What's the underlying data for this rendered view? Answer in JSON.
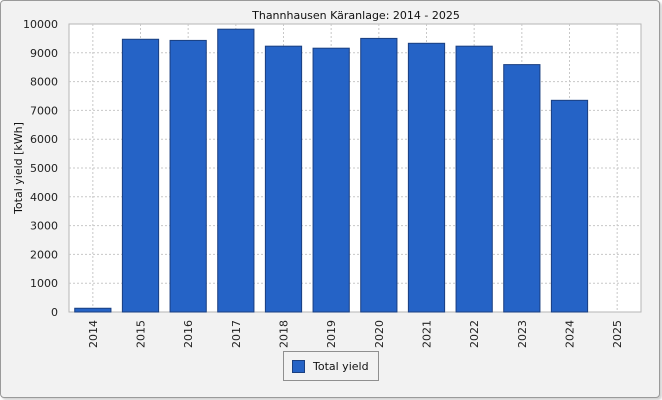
{
  "chart_data": {
    "type": "bar",
    "title": "Thannhausen Käranlage: 2014 - 2025",
    "xlabel": "",
    "ylabel": "Total yield [kWh]",
    "categories": [
      "2014",
      "2015",
      "2016",
      "2017",
      "2018",
      "2019",
      "2020",
      "2021",
      "2022",
      "2023",
      "2024",
      "2025"
    ],
    "series": [
      {
        "name": "Total yield",
        "values": [
          130,
          9470,
          9430,
          9820,
          9230,
          9160,
          9500,
          9330,
          9230,
          8590,
          7350,
          0
        ]
      }
    ],
    "ylim": [
      0,
      10000
    ],
    "yticks": [
      "0",
      "1000",
      "2000",
      "3000",
      "4000",
      "5000",
      "6000",
      "7000",
      "8000",
      "9000",
      "10000"
    ],
    "grid": true,
    "legend_position": "bottom-center",
    "bar_color": "#2563c6",
    "bar_edge_color": "#1a3f80"
  }
}
